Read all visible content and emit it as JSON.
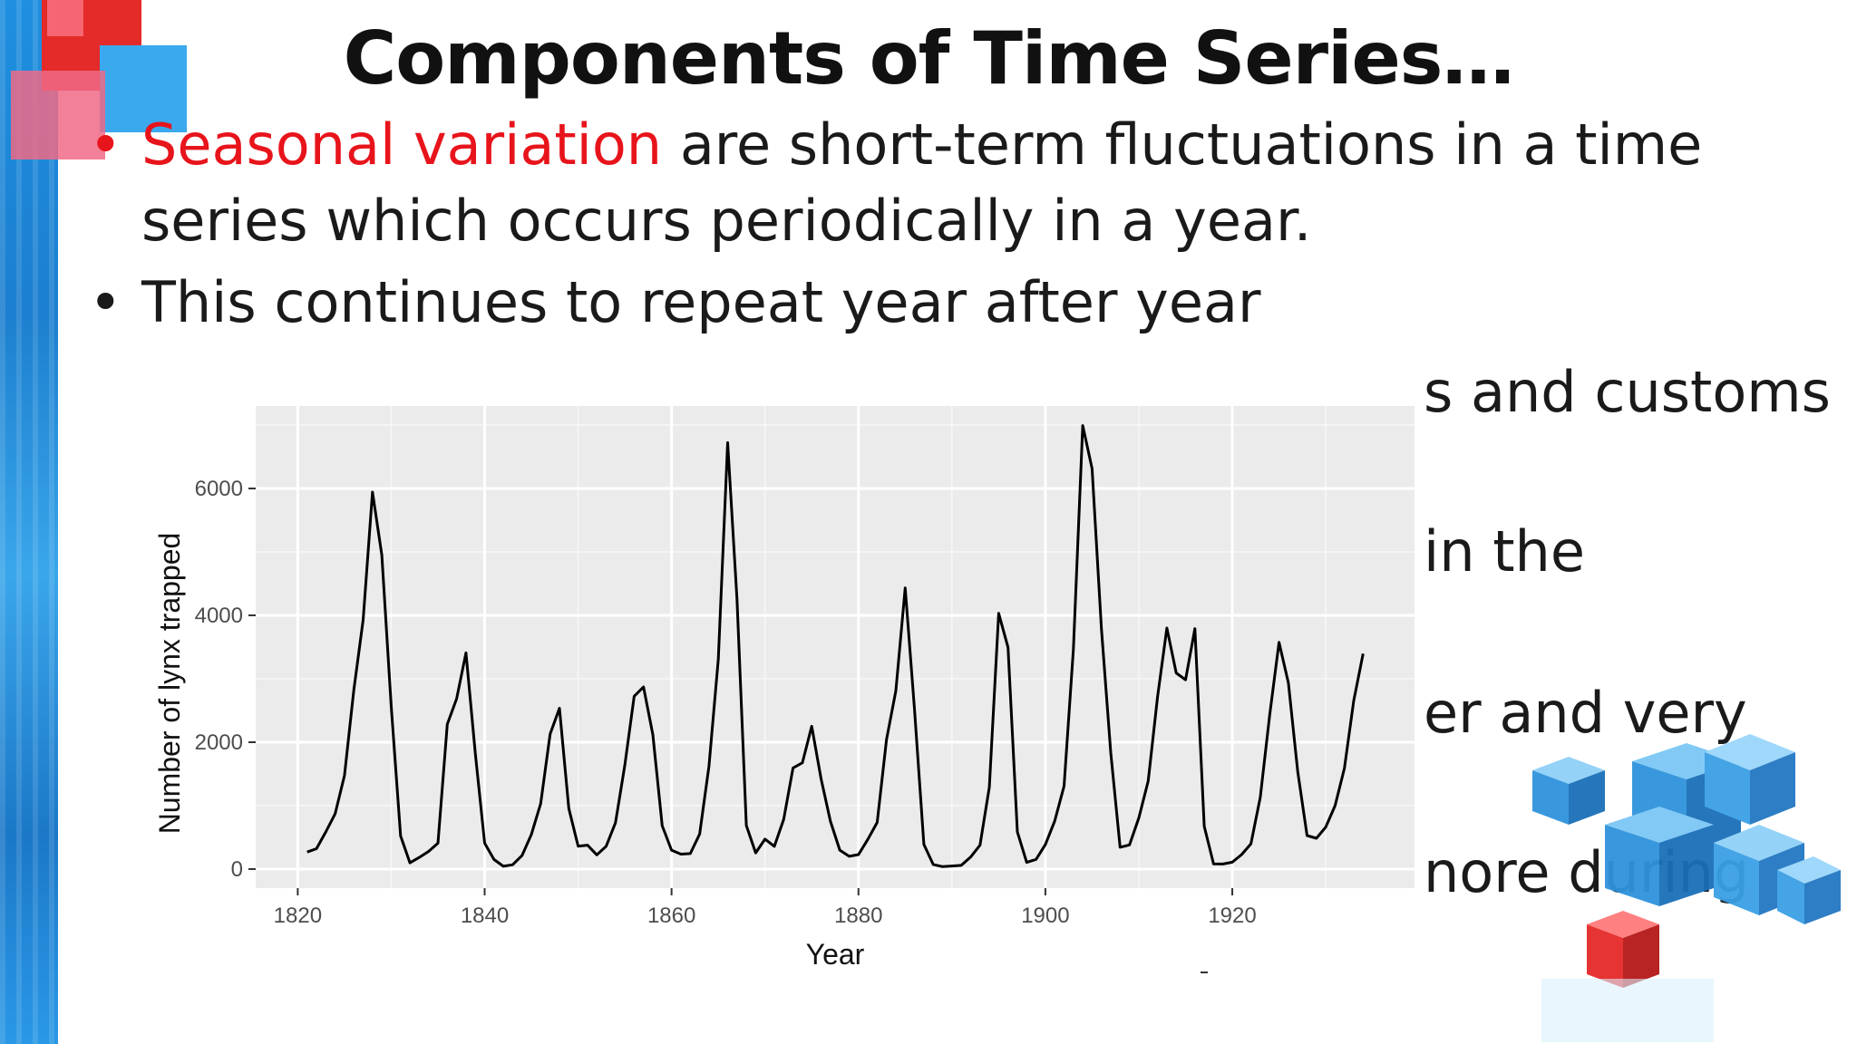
{
  "slide": {
    "title": "Components of Time Series…",
    "bullets": [
      {
        "highlight": "Seasonal variation",
        "text": " are short-term fluctuations in a time series which occurs periodically in a year."
      },
      {
        "highlight": "",
        "text": "This continues to repeat year after year"
      }
    ],
    "partial_lines": [
      "s and customs",
      "in the",
      "er and very",
      "nore during"
    ],
    "colors": {
      "accent": "#e8141b",
      "strip": "#1f8fe0"
    }
  },
  "chart_data": {
    "type": "line",
    "title": "",
    "xlabel": "Year",
    "ylabel": "Number of lynx trapped",
    "xlim": [
      1815.5,
      1939.5
    ],
    "ylim": [
      -300,
      7300
    ],
    "x_ticks": [
      1820,
      1840,
      1860,
      1880,
      1900,
      1920
    ],
    "y_ticks": [
      0,
      2000,
      4000,
      6000
    ],
    "x_tick_labels": [
      "1820",
      "1840",
      "1860",
      "1880",
      "1900",
      "1920"
    ],
    "y_tick_labels": [
      "0",
      "2000",
      "4000",
      "6000"
    ],
    "grid": true,
    "background": "#ebebeb",
    "line_color": "#000000",
    "series": [
      {
        "name": "",
        "x": [
          1821,
          1822,
          1823,
          1824,
          1825,
          1826,
          1827,
          1828,
          1829,
          1830,
          1831,
          1832,
          1833,
          1834,
          1835,
          1836,
          1837,
          1838,
          1839,
          1840,
          1841,
          1842,
          1843,
          1844,
          1845,
          1846,
          1847,
          1848,
          1849,
          1850,
          1851,
          1852,
          1853,
          1854,
          1855,
          1856,
          1857,
          1858,
          1859,
          1860,
          1861,
          1862,
          1863,
          1864,
          1865,
          1866,
          1867,
          1868,
          1869,
          1870,
          1871,
          1872,
          1873,
          1874,
          1875,
          1876,
          1877,
          1878,
          1879,
          1880,
          1881,
          1882,
          1883,
          1884,
          1885,
          1886,
          1887,
          1888,
          1889,
          1890,
          1891,
          1892,
          1893,
          1894,
          1895,
          1896,
          1897,
          1898,
          1899,
          1900,
          1901,
          1902,
          1903,
          1904,
          1905,
          1906,
          1907,
          1908,
          1909,
          1910,
          1911,
          1912,
          1913,
          1914,
          1915,
          1916,
          1917,
          1918,
          1919,
          1920,
          1921,
          1922,
          1923,
          1924,
          1925,
          1926,
          1927,
          1928,
          1929,
          1930,
          1931,
          1932,
          1933,
          1934
        ],
        "values": [
          269,
          321,
          585,
          871,
          1475,
          2821,
          3928,
          5943,
          4950,
          2577,
          523,
          98,
          184,
          279,
          409,
          2285,
          2685,
          3409,
          1824,
          409,
          151,
          45,
          68,
          213,
          546,
          1033,
          2129,
          2536,
          957,
          361,
          377,
          225,
          360,
          731,
          1638,
          2725,
          2871,
          2119,
          684,
          299,
          236,
          245,
          552,
          1623,
          3311,
          6721,
          4254,
          687,
          255,
          473,
          358,
          784,
          1594,
          1676,
          2251,
          1426,
          756,
          299,
          201,
          229,
          469,
          736,
          2042,
          2811,
          4431,
          2511,
          389,
          73,
          39,
          49,
          59,
          188,
          377,
          1292,
          4031,
          3495,
          587,
          105,
          153,
          387,
          758,
          1307,
          3465,
          6991,
          6313,
          3794,
          1836,
          345,
          382,
          808,
          1388,
          2713,
          3800,
          3091,
          2985,
          3790,
          674,
          81,
          80,
          108,
          229,
          399,
          1132,
          2432,
          3574,
          2935,
          1537,
          529,
          485,
          662,
          1000,
          1590,
          2657,
          3396
        ]
      }
    ]
  }
}
